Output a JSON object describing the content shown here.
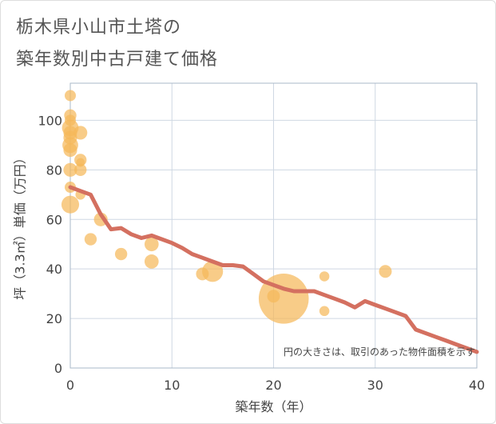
{
  "title_lines": [
    "栃木県小山市土塔の",
    "築年数別中古戸建て価格"
  ],
  "colors": {
    "bubble": "#f5b95a",
    "line": "#d47060",
    "grid": "#cfd8e3",
    "plot_border": "#aab8c8"
  },
  "chart_data": {
    "type": "scatter",
    "title": "栃木県小山市土塔の築年数別中古戸建て価格",
    "xlabel": "築年数（年）",
    "ylabel": "坪（3.3㎡）単価（万円）",
    "xlim": [
      0,
      40
    ],
    "ylim": [
      0,
      115
    ],
    "x_ticks": [
      0,
      10,
      20,
      30,
      40
    ],
    "y_ticks": [
      0,
      20,
      40,
      60,
      80,
      100
    ],
    "grid": true,
    "note": "円の大きさは、取引のあった物件面積を示す",
    "bubbles": [
      {
        "x": 0,
        "y": 110,
        "size": 1
      },
      {
        "x": 0,
        "y": 102,
        "size": 1.2
      },
      {
        "x": 0,
        "y": 100,
        "size": 1
      },
      {
        "x": 0,
        "y": 97,
        "size": 2.2
      },
      {
        "x": 0,
        "y": 95,
        "size": 1.5
      },
      {
        "x": 0,
        "y": 93,
        "size": 1.5
      },
      {
        "x": 0,
        "y": 90,
        "size": 2
      },
      {
        "x": 0,
        "y": 88,
        "size": 1.5
      },
      {
        "x": 0,
        "y": 80,
        "size": 1.5
      },
      {
        "x": 0,
        "y": 73,
        "size": 1
      },
      {
        "x": 0,
        "y": 66,
        "size": 2.5
      },
      {
        "x": 1,
        "y": 95,
        "size": 1.5
      },
      {
        "x": 1,
        "y": 84,
        "size": 1.2
      },
      {
        "x": 1,
        "y": 83,
        "size": 0.6
      },
      {
        "x": 1,
        "y": 80,
        "size": 1.2
      },
      {
        "x": 1,
        "y": 70,
        "size": 0.8
      },
      {
        "x": 2,
        "y": 52,
        "size": 1.2
      },
      {
        "x": 3,
        "y": 60,
        "size": 1.5
      },
      {
        "x": 5,
        "y": 46,
        "size": 1.2
      },
      {
        "x": 8,
        "y": 50,
        "size": 1.6
      },
      {
        "x": 8,
        "y": 43,
        "size": 1.6
      },
      {
        "x": 13,
        "y": 38,
        "size": 1.3
      },
      {
        "x": 14,
        "y": 39,
        "size": 3.5
      },
      {
        "x": 20,
        "y": 29,
        "size": 1.3
      },
      {
        "x": 21,
        "y": 28,
        "size": 20
      },
      {
        "x": 25,
        "y": 37,
        "size": 0.8
      },
      {
        "x": 25,
        "y": 23,
        "size": 0.8
      },
      {
        "x": 31,
        "y": 39,
        "size": 1.3
      }
    ],
    "trend_line": {
      "x": [
        0,
        1,
        2,
        3,
        4,
        5,
        6,
        7,
        8,
        9,
        10,
        11,
        12,
        13,
        14,
        15,
        16,
        17,
        18,
        19,
        20,
        21,
        22,
        23,
        24,
        25,
        26,
        27,
        28,
        29,
        30,
        31,
        32,
        33,
        34,
        35,
        36,
        37,
        38,
        39,
        40
      ],
      "y": [
        73,
        71.5,
        70,
        62,
        56,
        56.5,
        54,
        52.5,
        53.5,
        52,
        50.5,
        48.5,
        46,
        44.5,
        43,
        41.5,
        41.5,
        41,
        38,
        35,
        33.5,
        32,
        31,
        31,
        31,
        29.5,
        28,
        26.5,
        24.5,
        27,
        25.5,
        24,
        22.5,
        21,
        15.5,
        14,
        12.5,
        11,
        9.5,
        8,
        6.5
      ]
    }
  }
}
